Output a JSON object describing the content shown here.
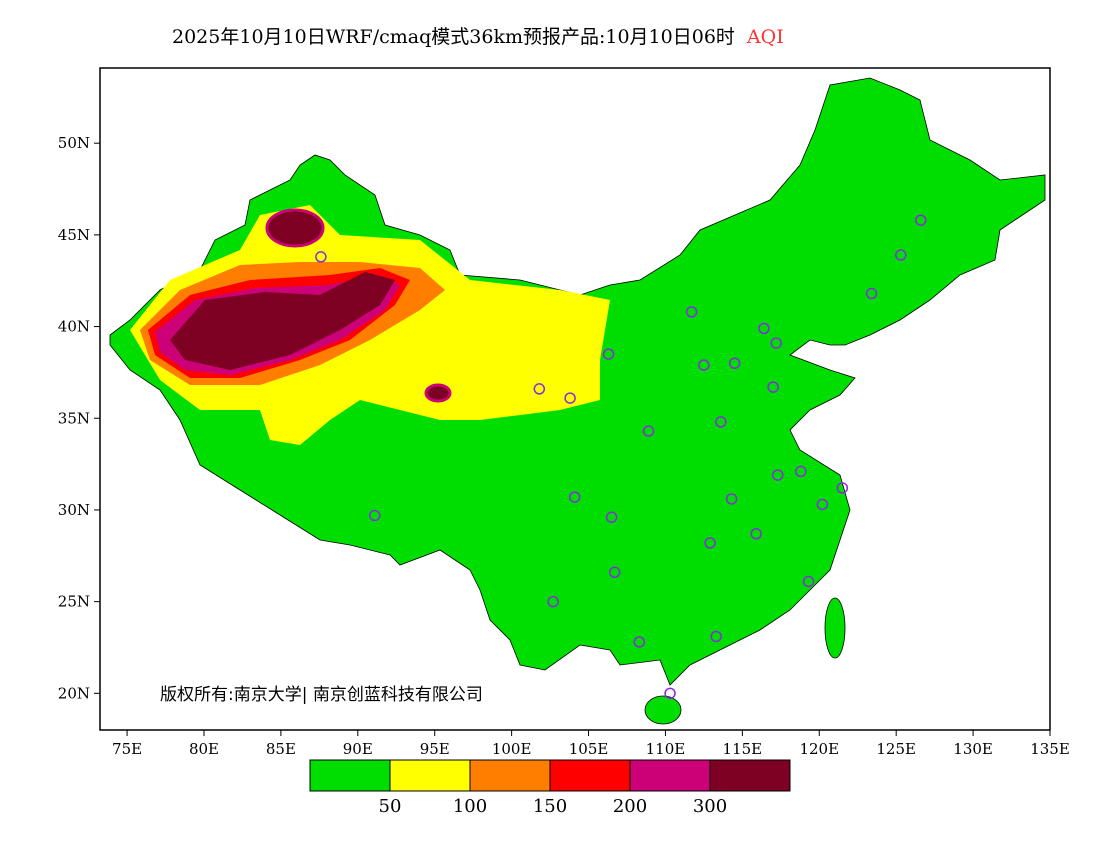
{
  "title": {
    "main": "2025年10月10日WRF/cmaq模式36km预报产品:10月10日06时",
    "variable": "AQI"
  },
  "copyright": "版权所有:南京大学| 南京创蓝科技有限公司",
  "map": {
    "lon_range": [
      73.24,
      135
    ],
    "lat_range": [
      18.0,
      54.1
    ],
    "lon_ticks": [
      "75E",
      "80E",
      "85E",
      "90E",
      "95E",
      "100E",
      "105E",
      "110E",
      "115E",
      "120E",
      "125E",
      "130E",
      "135E"
    ],
    "lat_ticks": [
      "20N",
      "25N",
      "30N",
      "35N",
      "40N",
      "45N",
      "50N"
    ],
    "stations": [
      [
        87.6,
        43.8
      ],
      [
        91.1,
        29.7
      ],
      [
        101.8,
        36.6
      ],
      [
        103.8,
        36.1
      ],
      [
        106.3,
        38.5
      ],
      [
        111.7,
        40.8
      ],
      [
        112.5,
        37.9
      ],
      [
        114.5,
        38.0
      ],
      [
        116.4,
        39.9
      ],
      [
        117.2,
        39.1
      ],
      [
        117.0,
        36.7
      ],
      [
        113.6,
        34.8
      ],
      [
        108.9,
        34.3
      ],
      [
        104.1,
        30.7
      ],
      [
        106.5,
        29.6
      ],
      [
        106.7,
        26.6
      ],
      [
        102.7,
        25.0
      ],
      [
        108.3,
        22.8
      ],
      [
        110.3,
        20.0
      ],
      [
        113.3,
        23.1
      ],
      [
        112.9,
        28.2
      ],
      [
        114.3,
        30.6
      ],
      [
        115.9,
        28.7
      ],
      [
        117.3,
        31.9
      ],
      [
        118.8,
        32.1
      ],
      [
        120.2,
        30.3
      ],
      [
        121.5,
        31.2
      ],
      [
        119.3,
        26.1
      ],
      [
        123.4,
        41.8
      ],
      [
        125.3,
        43.9
      ],
      [
        126.6,
        45.8
      ]
    ]
  },
  "legend": {
    "colors": [
      "#00dd00",
      "#ffff00",
      "#ff7e00",
      "#ff0000",
      "#cc0077",
      "#7e0023"
    ],
    "labels": [
      "50",
      "100",
      "150",
      "200",
      "300"
    ]
  }
}
